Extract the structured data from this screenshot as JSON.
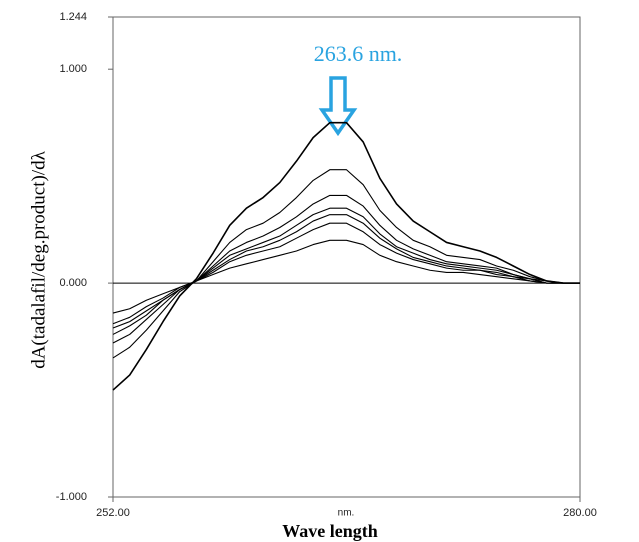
{
  "chart_data": {
    "type": "line",
    "ylabel": "dA(tadalafil/deg.product)/dλ",
    "xlabel": "Wave length",
    "xunit": "nm.",
    "annotation": "263.6 nm.",
    "annotation_color": "#29a3e0",
    "x": [
      252,
      253,
      254,
      255,
      256,
      257,
      258,
      259,
      260,
      261,
      262,
      263,
      264,
      265,
      266,
      267,
      268,
      269,
      270,
      271,
      272,
      273,
      274,
      275,
      276,
      277,
      278,
      279,
      280
    ],
    "series": [
      {
        "color": "#000000",
        "values": [
          -0.5,
          -0.43,
          -0.31,
          -0.18,
          -0.06,
          0.02,
          0.14,
          0.27,
          0.35,
          0.4,
          0.47,
          0.57,
          0.68,
          0.75,
          0.75,
          0.66,
          0.49,
          0.37,
          0.29,
          0.24,
          0.19,
          0.17,
          0.15,
          0.12,
          0.08,
          0.04,
          0.01,
          0,
          0
        ]
      },
      {
        "color": "#000000",
        "values": [
          -0.35,
          -0.3,
          -0.22,
          -0.13,
          -0.04,
          0.01,
          0.1,
          0.19,
          0.25,
          0.28,
          0.33,
          0.4,
          0.48,
          0.53,
          0.53,
          0.46,
          0.34,
          0.26,
          0.2,
          0.17,
          0.13,
          0.12,
          0.11,
          0.08,
          0.06,
          0.03,
          0.01,
          0,
          0
        ]
      },
      {
        "color": "#000000",
        "values": [
          -0.28,
          -0.24,
          -0.17,
          -0.1,
          -0.03,
          0.01,
          0.08,
          0.15,
          0.19,
          0.22,
          0.26,
          0.31,
          0.37,
          0.41,
          0.41,
          0.36,
          0.27,
          0.2,
          0.16,
          0.13,
          0.1,
          0.09,
          0.08,
          0.07,
          0.04,
          0.02,
          0.01,
          0,
          0
        ]
      },
      {
        "color": "#000000",
        "values": [
          -0.24,
          -0.2,
          -0.15,
          -0.08,
          -0.03,
          0.01,
          0.07,
          0.13,
          0.16,
          0.19,
          0.22,
          0.27,
          0.32,
          0.35,
          0.35,
          0.31,
          0.23,
          0.17,
          0.14,
          0.11,
          0.09,
          0.08,
          0.07,
          0.06,
          0.04,
          0.02,
          0,
          0,
          0
        ]
      },
      {
        "color": "#000000",
        "values": [
          -0.21,
          -0.18,
          -0.13,
          -0.08,
          -0.03,
          0.01,
          0.06,
          0.11,
          0.15,
          0.17,
          0.2,
          0.24,
          0.29,
          0.32,
          0.32,
          0.28,
          0.21,
          0.16,
          0.12,
          0.1,
          0.08,
          0.07,
          0.06,
          0.05,
          0.03,
          0.02,
          0,
          0,
          0
        ]
      },
      {
        "color": "#000000",
        "values": [
          -0.19,
          -0.16,
          -0.11,
          -0.07,
          -0.02,
          0.01,
          0.05,
          0.1,
          0.13,
          0.15,
          0.17,
          0.21,
          0.25,
          0.28,
          0.28,
          0.24,
          0.18,
          0.14,
          0.11,
          0.09,
          0.07,
          0.06,
          0.06,
          0.04,
          0.03,
          0.01,
          0,
          0,
          0
        ]
      },
      {
        "color": "#000000",
        "values": [
          -0.14,
          -0.12,
          -0.08,
          -0.05,
          -0.02,
          0.01,
          0.04,
          0.07,
          0.09,
          0.11,
          0.13,
          0.15,
          0.18,
          0.2,
          0.2,
          0.18,
          0.13,
          0.1,
          0.08,
          0.06,
          0.05,
          0.05,
          0.04,
          0.03,
          0.02,
          0.01,
          0,
          0,
          0
        ]
      }
    ],
    "xlim": [
      252,
      280
    ],
    "xticks": [
      {
        "value": 252,
        "label": "252.00"
      },
      {
        "value": 280,
        "label": "280.00"
      }
    ],
    "ylim": [
      -1,
      1.244
    ],
    "yticks": [
      {
        "value": -1,
        "label": "-1.000"
      },
      {
        "value": 0,
        "label": "0.000"
      },
      {
        "value": 1,
        "label": "1.000"
      },
      {
        "value": 1.244,
        "label": "1.244"
      }
    ],
    "zero_line": true,
    "grid": false
  }
}
